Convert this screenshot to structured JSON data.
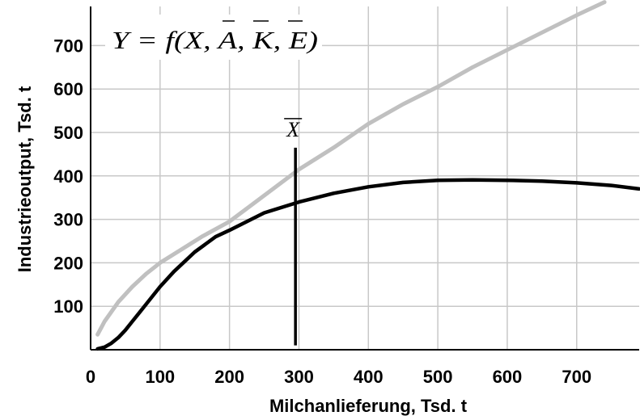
{
  "chart_data": {
    "type": "line",
    "title": "",
    "xlabel": "Milchanlieferung, Tsd. t",
    "ylabel": "Industrieoutput, Tsd. t",
    "xlim": [
      0,
      790
    ],
    "ylim": [
      0,
      790
    ],
    "x_ticks": [
      0,
      100,
      200,
      300,
      400,
      500,
      600,
      700
    ],
    "y_ticks": [
      100,
      200,
      300,
      400,
      500,
      600,
      700
    ],
    "x_tick_labels": [
      "0",
      "100",
      "200",
      "300",
      "400",
      "500",
      "600",
      "700"
    ],
    "y_tick_labels": [
      "100",
      "200",
      "300",
      "400",
      "500",
      "600",
      "700"
    ],
    "grid": true,
    "annotation": "Y = f(X, A, K, E)",
    "annotation_overbars": [
      "A",
      "K",
      "E"
    ],
    "marker": {
      "label": "X",
      "overbar": true,
      "x": 295,
      "y_from": 10,
      "y_to": 465
    },
    "series": [
      {
        "color": "#c0c0c0",
        "x": [
          10,
          20,
          40,
          60,
          80,
          100,
          130,
          160,
          200,
          250,
          300,
          350,
          400,
          450,
          500,
          550,
          600,
          650,
          700,
          740
        ],
        "y": [
          35,
          65,
          110,
          145,
          175,
          200,
          230,
          260,
          295,
          355,
          415,
          465,
          520,
          565,
          605,
          650,
          690,
          730,
          770,
          800
        ]
      },
      {
        "color": "#000000",
        "x": [
          10,
          20,
          30,
          40,
          50,
          60,
          70,
          80,
          100,
          120,
          150,
          180,
          200,
          250,
          300,
          350,
          400,
          450,
          500,
          550,
          600,
          650,
          700,
          750,
          790
        ],
        "y": [
          2,
          6,
          15,
          28,
          45,
          65,
          85,
          105,
          145,
          180,
          225,
          260,
          275,
          315,
          340,
          360,
          375,
          385,
          390,
          391,
          390,
          388,
          384,
          378,
          370
        ]
      }
    ]
  }
}
